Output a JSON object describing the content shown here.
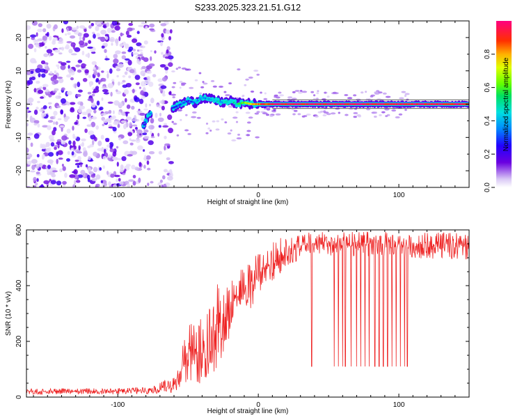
{
  "title": "S233.2025.323.21.51.G12",
  "chart_data": [
    {
      "type": "scatter",
      "subtype": "spectrogram",
      "xlabel": "Height of straight line (km)",
      "ylabel": "Frequency (Hz)",
      "xlim": [
        -165,
        150
      ],
      "ylim": [
        -25,
        25
      ],
      "xticks": [
        -100,
        0,
        100
      ],
      "yticks": [
        -20,
        -10,
        0,
        10,
        20
      ],
      "grid": false,
      "colorbar": {
        "label": "Normalized spectral amplitude",
        "ticks": [
          "0.0",
          "0.2",
          "0.4",
          "0.6",
          "0.8"
        ],
        "range": [
          0,
          1
        ]
      },
      "noise_region_x": [
        -165,
        -62
      ],
      "signal_trace": [
        {
          "x": -80,
          "y": -5,
          "a": 0.35
        },
        {
          "x": -78,
          "y": -3,
          "a": 0.4
        },
        {
          "x": -60,
          "y": -1,
          "a": 0.3
        },
        {
          "x": -55,
          "y": 0,
          "a": 0.35
        },
        {
          "x": -50,
          "y": 1,
          "a": 0.3
        },
        {
          "x": -45,
          "y": 0.5,
          "a": 0.35
        },
        {
          "x": -40,
          "y": 2,
          "a": 0.4
        },
        {
          "x": -35,
          "y": 1.5,
          "a": 0.35
        },
        {
          "x": -30,
          "y": 1,
          "a": 0.45
        },
        {
          "x": -25,
          "y": 0.5,
          "a": 0.4
        },
        {
          "x": -20,
          "y": 1,
          "a": 0.45
        },
        {
          "x": -15,
          "y": 0,
          "a": 0.5
        },
        {
          "x": -10,
          "y": 0.5,
          "a": 0.6
        },
        {
          "x": -5,
          "y": 0,
          "a": 0.75
        },
        {
          "x": 0,
          "y": 0,
          "a": 0.85
        },
        {
          "x": 10,
          "y": 0,
          "a": 0.95
        },
        {
          "x": 150,
          "y": 0,
          "a": 0.95
        }
      ]
    },
    {
      "type": "line",
      "xlabel": "Height of straight line (km)",
      "ylabel": "SNR (10 * v/v)",
      "xlim": [
        -165,
        150
      ],
      "ylim": [
        0,
        600
      ],
      "xticks": [
        -100,
        0,
        100
      ],
      "yticks": [
        0,
        200,
        400,
        600
      ],
      "grid": false,
      "color": "#ee2222",
      "envelope": [
        {
          "x": -165,
          "lo": 10,
          "hi": 30
        },
        {
          "x": -75,
          "lo": 10,
          "hi": 35
        },
        {
          "x": -70,
          "lo": 15,
          "hi": 60
        },
        {
          "x": -60,
          "lo": 15,
          "hi": 70
        },
        {
          "x": -55,
          "lo": 40,
          "hi": 150
        },
        {
          "x": -50,
          "lo": 50,
          "hi": 290
        },
        {
          "x": -45,
          "lo": 60,
          "hi": 250
        },
        {
          "x": -40,
          "lo": 30,
          "hi": 320
        },
        {
          "x": -35,
          "lo": 60,
          "hi": 320
        },
        {
          "x": -30,
          "lo": 100,
          "hi": 420
        },
        {
          "x": -25,
          "lo": 140,
          "hi": 410
        },
        {
          "x": -20,
          "lo": 220,
          "hi": 440
        },
        {
          "x": -15,
          "lo": 260,
          "hi": 470
        },
        {
          "x": -10,
          "lo": 290,
          "hi": 470
        },
        {
          "x": -5,
          "lo": 320,
          "hi": 490
        },
        {
          "x": 0,
          "lo": 360,
          "hi": 520
        },
        {
          "x": 5,
          "lo": 390,
          "hi": 540
        },
        {
          "x": 10,
          "lo": 410,
          "hi": 560
        },
        {
          "x": 15,
          "lo": 440,
          "hi": 570
        },
        {
          "x": 20,
          "lo": 460,
          "hi": 580
        },
        {
          "x": 25,
          "lo": 480,
          "hi": 590
        },
        {
          "x": 30,
          "lo": 500,
          "hi": 590
        },
        {
          "x": 35,
          "lo": 510,
          "hi": 595
        },
        {
          "x": 40,
          "lo": 510,
          "hi": 595
        },
        {
          "x": 150,
          "lo": 490,
          "hi": 590
        }
      ],
      "dropouts": [
        {
          "x": 38,
          "y": 110
        },
        {
          "x": 54,
          "y": 110
        },
        {
          "x": 57,
          "y": 110
        },
        {
          "x": 60,
          "y": 110
        },
        {
          "x": 62,
          "y": 110
        },
        {
          "x": 66,
          "y": 110
        },
        {
          "x": 70,
          "y": 110
        },
        {
          "x": 73,
          "y": 110
        },
        {
          "x": 76,
          "y": 110
        },
        {
          "x": 79,
          "y": 110
        },
        {
          "x": 83,
          "y": 110
        },
        {
          "x": 86,
          "y": 110
        },
        {
          "x": 89,
          "y": 110
        },
        {
          "x": 92,
          "y": 110
        },
        {
          "x": 95,
          "y": 110
        },
        {
          "x": 98,
          "y": 110
        },
        {
          "x": 101,
          "y": 110
        },
        {
          "x": 104,
          "y": 110
        },
        {
          "x": 106,
          "y": 110
        }
      ]
    }
  ]
}
